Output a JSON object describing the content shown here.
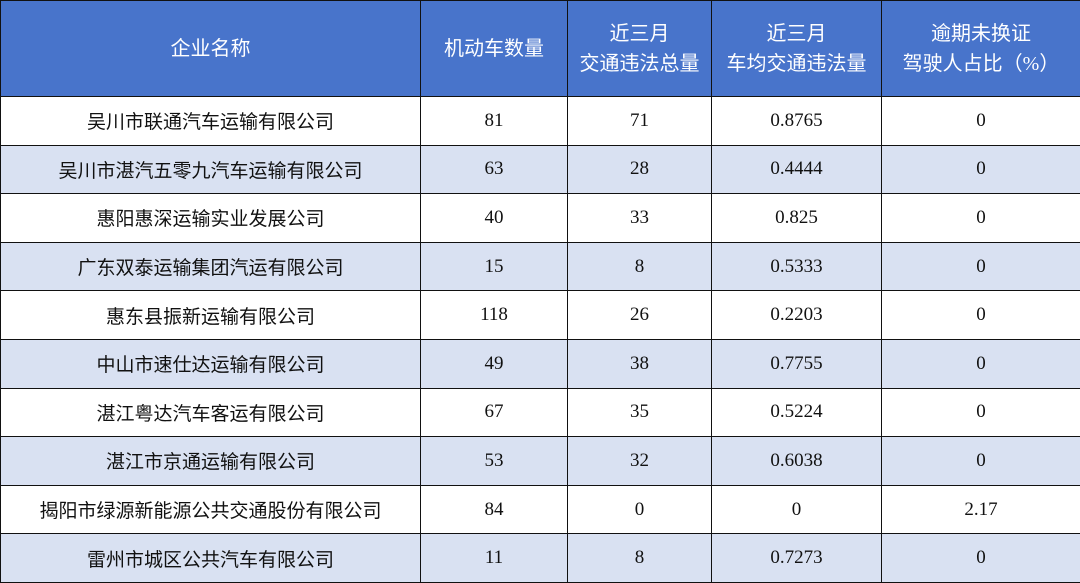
{
  "colors": {
    "header_bg": "#4874CB",
    "header_text": "#FFFFFF",
    "alt_row_bg": "#D9E1F2",
    "row_bg": "#FFFFFF"
  },
  "headers": [
    {
      "lines": [
        "企业名称"
      ]
    },
    {
      "lines": [
        "机动车数量"
      ]
    },
    {
      "lines": [
        "近三月",
        "交通违法总量"
      ]
    },
    {
      "lines": [
        "近三月",
        "车均交通违法量"
      ]
    },
    {
      "lines": [
        "逾期未换证",
        "驾驶人占比（%）"
      ]
    }
  ],
  "rows": [
    [
      "吴川市联通汽车运输有限公司",
      "81",
      "71",
      "0.8765",
      "0"
    ],
    [
      "吴川市湛汽五零九汽车运输有限公司",
      "63",
      "28",
      "0.4444",
      "0"
    ],
    [
      "惠阳惠深运输实业发展公司",
      "40",
      "33",
      "0.825",
      "0"
    ],
    [
      "广东双泰运输集团汽运有限公司",
      "15",
      "8",
      "0.5333",
      "0"
    ],
    [
      "惠东县振新运输有限公司",
      "118",
      "26",
      "0.2203",
      "0"
    ],
    [
      "中山市速仕达运输有限公司",
      "49",
      "38",
      "0.7755",
      "0"
    ],
    [
      "湛江粤达汽车客运有限公司",
      "67",
      "35",
      "0.5224",
      "0"
    ],
    [
      "湛江市京通运输有限公司",
      "53",
      "32",
      "0.6038",
      "0"
    ],
    [
      "揭阳市绿源新能源公共交通股份有限公司",
      "84",
      "0",
      "0",
      "2.17"
    ],
    [
      "雷州市城区公共汽车有限公司",
      "11",
      "8",
      "0.7273",
      "0"
    ]
  ]
}
